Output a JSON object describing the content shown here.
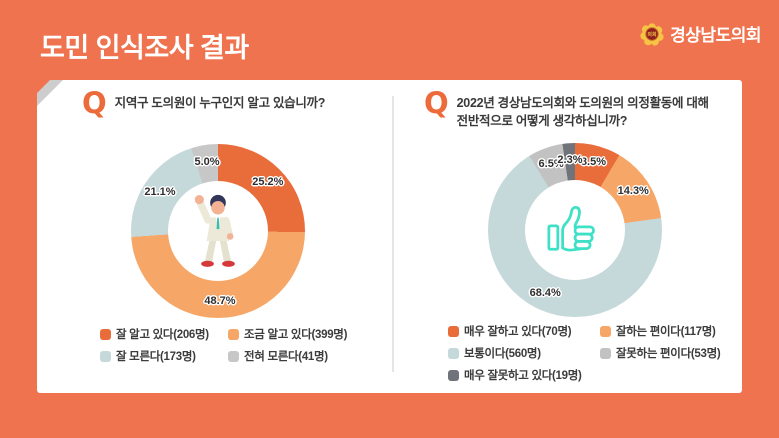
{
  "header": {
    "title": "도민 인식조사 결과",
    "logo": {
      "name": "경상남도의회",
      "emblem_text": "의회"
    }
  },
  "q_icon": "Q",
  "colors": {
    "background": "#EF734E",
    "panel": "#FFFFFF",
    "divider": "#E5E5E5",
    "title_text": "#FFFFFF",
    "question_text": "#3A3A3A",
    "q_icon": "#ED6B3B",
    "emblem_yellow": "#F6C445",
    "emblem_red": "#8E1F1F",
    "thumbs_up_teal": "#3EE0C6"
  },
  "chart_data": [
    {
      "type": "pie",
      "subtype": "donut",
      "question": "지역구 도의원이 누구인지 알고 있습니까?",
      "question_lines": [
        "지역구 도의원이 누구인지 알고 있습니까?"
      ],
      "start_angle_deg": 0,
      "direction": "clockwise",
      "legend_position": "bottom",
      "count_unit": "명",
      "percent_suffix": "%",
      "center_icon": "person-cheering",
      "slices": [
        {
          "label": "잘 알고 있다",
          "count": 206,
          "percent": 25.2,
          "color": "#E96C3B"
        },
        {
          "label": "조금 알고 있다",
          "count": 399,
          "percent": 48.7,
          "color": "#F6A666"
        },
        {
          "label": "잘 모른다",
          "count": 173,
          "percent": 21.1,
          "color": "#C5D8DA"
        },
        {
          "label": "전혀 모른다",
          "count": 41,
          "percent": 5.0,
          "color": "#C7C7C7"
        }
      ]
    },
    {
      "type": "pie",
      "subtype": "donut",
      "question": "2022년 경상남도의회와 도의원의 의정활동에 대해 전반적으로 어떻게 생각하십니까?",
      "question_lines": [
        "2022년 경상남도의회와 도의원의 의정활동에 대해",
        "전반적으로 어떻게 생각하십니까?"
      ],
      "start_angle_deg": 0,
      "direction": "clockwise",
      "legend_position": "bottom",
      "count_unit": "명",
      "percent_suffix": "%",
      "center_icon": "thumbs-up",
      "slices": [
        {
          "label": "매우 잘하고 있다",
          "count": 70,
          "percent": 8.5,
          "color": "#E96C3B"
        },
        {
          "label": "잘하는 편이다",
          "count": 117,
          "percent": 14.3,
          "color": "#F6A666"
        },
        {
          "label": "보통이다",
          "count": 560,
          "percent": 68.4,
          "color": "#C5D8DA"
        },
        {
          "label": "잘못하는 편이다",
          "count": 53,
          "percent": 6.5,
          "color": "#C2C2C2"
        },
        {
          "label": "매우 잘못하고 있다",
          "count": 19,
          "percent": 2.3,
          "color": "#70747A"
        }
      ]
    }
  ]
}
